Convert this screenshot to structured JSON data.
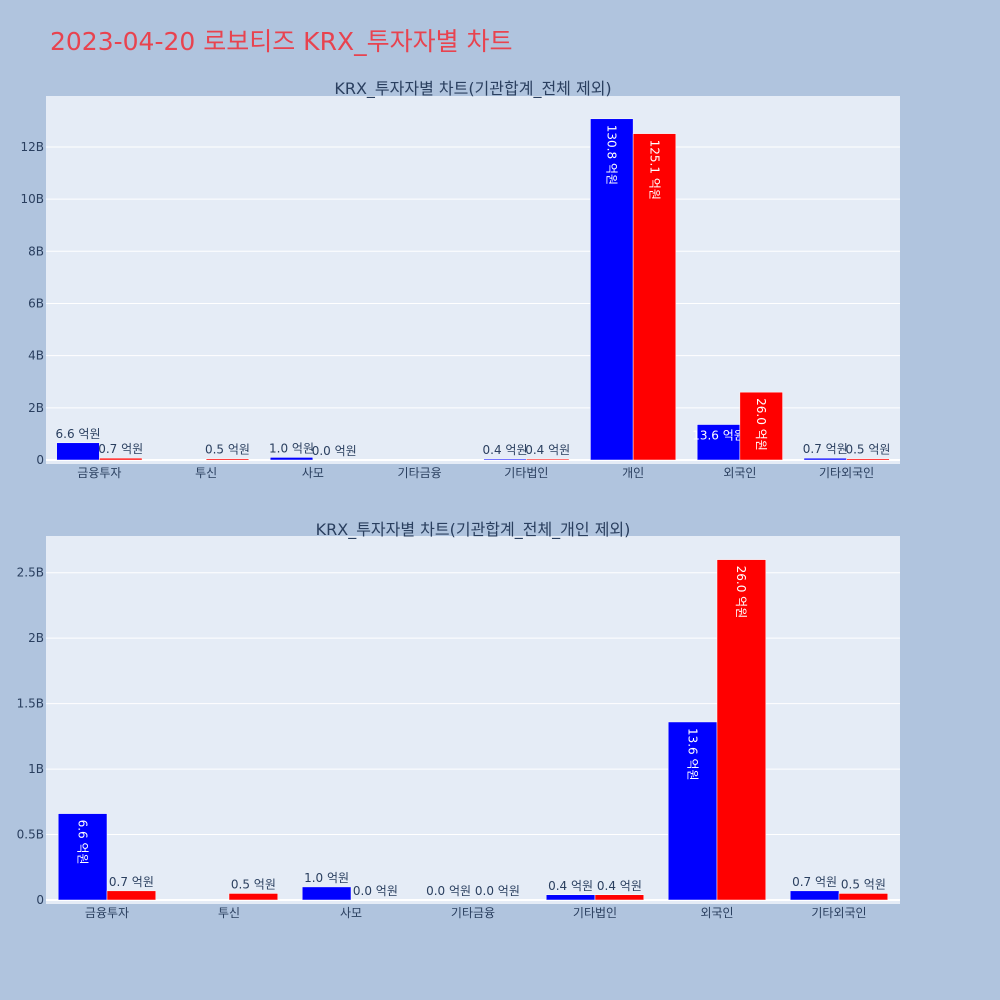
{
  "page": {
    "title": "2023-04-20 로보티즈 KRX_투자자별 차트"
  },
  "colors": {
    "buy": "#0000ff",
    "sell": "#ff0000",
    "plot_bg": "#e5ecf6",
    "page_bg": "#b0c4de",
    "title": "#e8434f"
  },
  "chart_data": [
    {
      "type": "bar",
      "title": "KRX_투자자별 차트(기관합계_전체 제외)",
      "categories": [
        "금융투자",
        "투신",
        "사모",
        "기타금융",
        "기타법인",
        "개인",
        "외국인",
        "기타외국인"
      ],
      "series": [
        {
          "values": [
            660000000,
            0,
            100000000,
            0,
            40000000,
            13080000000,
            1360000000,
            70000000
          ],
          "labels": [
            "6.6 억원",
            "",
            "1.0 억원",
            "",
            "0.4 억원",
            "130.8 억원",
            "13.6 억원",
            "0.7 억원"
          ]
        },
        {
          "values": [
            70000000,
            50000000,
            0,
            0,
            40000000,
            12510000000,
            2600000000,
            50000000
          ],
          "labels": [
            "0.7 억원",
            "0.5 억원",
            "0.0 억원",
            "",
            "0.4 억원",
            "125.1 억원",
            "26.0 억원",
            "0.5 억원"
          ]
        }
      ],
      "ylim": [
        0,
        13800000000
      ],
      "yticks": [
        0,
        2000000000,
        4000000000,
        6000000000,
        8000000000,
        10000000000,
        12000000000
      ],
      "ytick_labels": [
        "0",
        "2B",
        "4B",
        "6B",
        "8B",
        "10B",
        "12B"
      ],
      "grid": true,
      "legend": "none"
    },
    {
      "type": "bar",
      "title": "KRX_투자자별 차트(기관합계_전체_개인 제외)",
      "categories": [
        "금융투자",
        "투신",
        "사모",
        "기타금융",
        "기타법인",
        "외국인",
        "기타외국인"
      ],
      "series": [
        {
          "values": [
            660000000,
            0,
            100000000,
            0,
            40000000,
            1360000000,
            70000000
          ],
          "labels": [
            "6.6 억원",
            "",
            "1.0 억원",
            "0.0 억원",
            "0.4 억원",
            "13.6 억원",
            "0.7 억원"
          ]
        },
        {
          "values": [
            70000000,
            50000000,
            0,
            0,
            40000000,
            2600000000,
            50000000
          ],
          "labels": [
            "0.7 억원",
            "0.5 억원",
            "0.0 억원",
            "0.0 억원",
            "0.4 억원",
            "26.0 억원",
            "0.5 억원"
          ]
        }
      ],
      "ylim": [
        0,
        2750000000
      ],
      "yticks": [
        0,
        500000000,
        1000000000,
        1500000000,
        2000000000,
        2500000000
      ],
      "ytick_labels": [
        "0",
        "0.5B",
        "1B",
        "1.5B",
        "2B",
        "2.5B"
      ],
      "grid": true,
      "legend": "none"
    }
  ]
}
